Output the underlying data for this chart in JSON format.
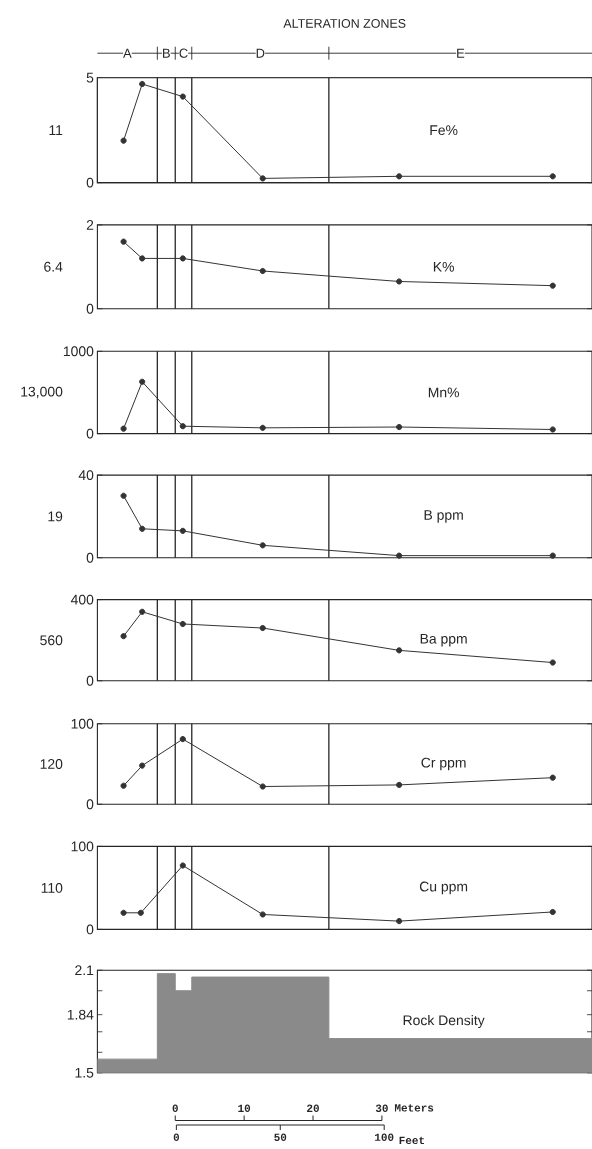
{
  "chart_data": [
    {
      "type": "line",
      "title": "ALTERATION ZONES",
      "ylabel": "Fe%",
      "x": [
        -7.5,
        -4.8,
        1.1,
        12.7,
        32.5,
        54.8
      ],
      "values": [
        2.0,
        4.7,
        4.1,
        0.2,
        0.3,
        0.3
      ],
      "color": "#333333",
      "marker": "circle",
      "xlim": [
        -11.3,
        60.5
      ],
      "ylim": [
        0,
        5
      ],
      "yticks": [
        0,
        5
      ],
      "tick_labels": "y",
      "annotations": [
        "11"
      ],
      "ref_lines": [
        {
          "axis": "x",
          "value": -2.6
        },
        {
          "axis": "x",
          "value": 0
        },
        {
          "axis": "x",
          "value": 2.4
        },
        {
          "axis": "x",
          "value": 22.3
        }
      ],
      "bands": [
        {
          "axis": "x",
          "from": -11.3,
          "to": -2.6,
          "label": "A",
          "color": "#ffffff"
        },
        {
          "axis": "x",
          "from": -2.6,
          "to": 0,
          "label": "B",
          "color": "#ffffff"
        },
        {
          "axis": "x",
          "from": 0,
          "to": 2.4,
          "label": "C",
          "color": "#ffffff"
        },
        {
          "axis": "x",
          "from": 2.4,
          "to": 22.3,
          "label": "D",
          "color": "#ffffff"
        },
        {
          "axis": "x",
          "from": 22.3,
          "to": 60.5,
          "label": "E",
          "color": "#ffffff"
        }
      ]
    },
    {
      "type": "line",
      "ylabel": "K%",
      "x": [
        -7.5,
        -4.8,
        1.1,
        12.7,
        32.5,
        54.8
      ],
      "values": [
        1.6,
        1.2,
        1.2,
        0.9,
        0.65,
        0.55
      ],
      "color": "#333333",
      "marker": "circle",
      "xlim": [
        -11.3,
        60.5
      ],
      "ylim": [
        0,
        2
      ],
      "yticks": [
        0,
        2
      ],
      "tick_labels": "y",
      "annotations": [
        "6.4"
      ],
      "ref_lines": [
        {
          "axis": "x",
          "value": -2.6
        },
        {
          "axis": "x",
          "value": 0
        },
        {
          "axis": "x",
          "value": 2.4
        },
        {
          "axis": "x",
          "value": 22.3
        }
      ]
    },
    {
      "type": "line",
      "ylabel": "Mn%",
      "x": [
        -7.5,
        -4.8,
        1.1,
        12.7,
        32.5,
        54.8
      ],
      "values": [
        60,
        630,
        90,
        70,
        80,
        50
      ],
      "color": "#333333",
      "marker": "circle",
      "xlim": [
        -11.3,
        60.5
      ],
      "ylim": [
        0,
        1000
      ],
      "yticks": [
        0,
        1000
      ],
      "tick_labels": "y",
      "annotations": [
        "13,000"
      ],
      "ref_lines": [
        {
          "axis": "x",
          "value": -2.6
        },
        {
          "axis": "x",
          "value": 0
        },
        {
          "axis": "x",
          "value": 2.4
        },
        {
          "axis": "x",
          "value": 22.3
        }
      ]
    },
    {
      "type": "line",
      "ylabel": "B ppm",
      "x": [
        -7.5,
        -4.8,
        1.1,
        12.7,
        32.5,
        54.8
      ],
      "values": [
        30,
        14,
        13,
        6,
        1,
        1
      ],
      "color": "#333333",
      "marker": "circle",
      "xlim": [
        -11.3,
        60.5
      ],
      "ylim": [
        0,
        40
      ],
      "yticks": [
        0,
        40
      ],
      "tick_labels": "y",
      "annotations": [
        "19"
      ],
      "ref_lines": [
        {
          "axis": "x",
          "value": -2.6
        },
        {
          "axis": "x",
          "value": 0
        },
        {
          "axis": "x",
          "value": 2.4
        },
        {
          "axis": "x",
          "value": 22.3
        }
      ]
    },
    {
      "type": "line",
      "ylabel": "Ba ppm",
      "x": [
        -7.5,
        -4.8,
        1.1,
        12.7,
        32.5,
        54.8
      ],
      "values": [
        220,
        340,
        280,
        260,
        150,
        90
      ],
      "color": "#333333",
      "marker": "circle",
      "xlim": [
        -11.3,
        60.5
      ],
      "ylim": [
        0,
        400
      ],
      "yticks": [
        0,
        400
      ],
      "tick_labels": "y",
      "annotations": [
        "560"
      ],
      "ref_lines": [
        {
          "axis": "x",
          "value": -2.6
        },
        {
          "axis": "x",
          "value": 0
        },
        {
          "axis": "x",
          "value": 2.4
        },
        {
          "axis": "x",
          "value": 22.3
        }
      ]
    },
    {
      "type": "line",
      "ylabel": "Cr ppm",
      "x": [
        -7.5,
        -4.8,
        1.1,
        12.7,
        32.5,
        54.8
      ],
      "values": [
        23,
        48,
        81,
        22,
        24,
        33
      ],
      "color": "#333333",
      "marker": "circle",
      "xlim": [
        -11.3,
        60.5
      ],
      "ylim": [
        0,
        100
      ],
      "yticks": [
        0,
        100
      ],
      "tick_labels": "y",
      "annotations": [
        "120"
      ],
      "ref_lines": [
        {
          "axis": "x",
          "value": -2.6
        },
        {
          "axis": "x",
          "value": 0
        },
        {
          "axis": "x",
          "value": 2.4
        },
        {
          "axis": "x",
          "value": 22.3
        }
      ]
    },
    {
      "type": "line",
      "ylabel": "Cu ppm",
      "x": [
        -7.5,
        -5.0,
        1.1,
        12.7,
        32.5,
        54.8
      ],
      "values": [
        20,
        20,
        77,
        18,
        10,
        21
      ],
      "color": "#333333",
      "marker": "circle",
      "xlim": [
        -11.3,
        60.5
      ],
      "ylim": [
        0,
        100
      ],
      "yticks": [
        0,
        100
      ],
      "tick_labels": "y",
      "annotations": [
        "110"
      ],
      "ref_lines": [
        {
          "axis": "x",
          "value": -2.6
        },
        {
          "axis": "x",
          "value": 0
        },
        {
          "axis": "x",
          "value": 2.4
        },
        {
          "axis": "x",
          "value": 22.3
        }
      ]
    },
    {
      "type": "area",
      "ylabel": "Rock Density",
      "x": [
        -11.3,
        -2.6,
        -2.6,
        0,
        0,
        2.4,
        2.4,
        22.3,
        22.3,
        60.5
      ],
      "values": [
        1.58,
        1.58,
        2.08,
        2.08,
        1.98,
        1.98,
        2.06,
        2.06,
        1.7,
        1.7
      ],
      "color": "#8a8a8a",
      "xlim": [
        -11.3,
        60.5
      ],
      "ylim": [
        1.5,
        2.1
      ],
      "yticks": [
        1.5,
        {
          "value": 1.62,
          "label": null
        },
        {
          "value": 1.74,
          "label": null
        },
        1.84,
        {
          "value": 1.98,
          "label": null
        },
        2.1
      ],
      "xticks": [
        0,
        10,
        20,
        30
      ],
      "xlabel": "Meters",
      "x2lim": [
        -38,
        200
      ],
      "x2ticks": [
        0,
        50,
        100
      ],
      "x2label": "Feet"
    }
  ]
}
